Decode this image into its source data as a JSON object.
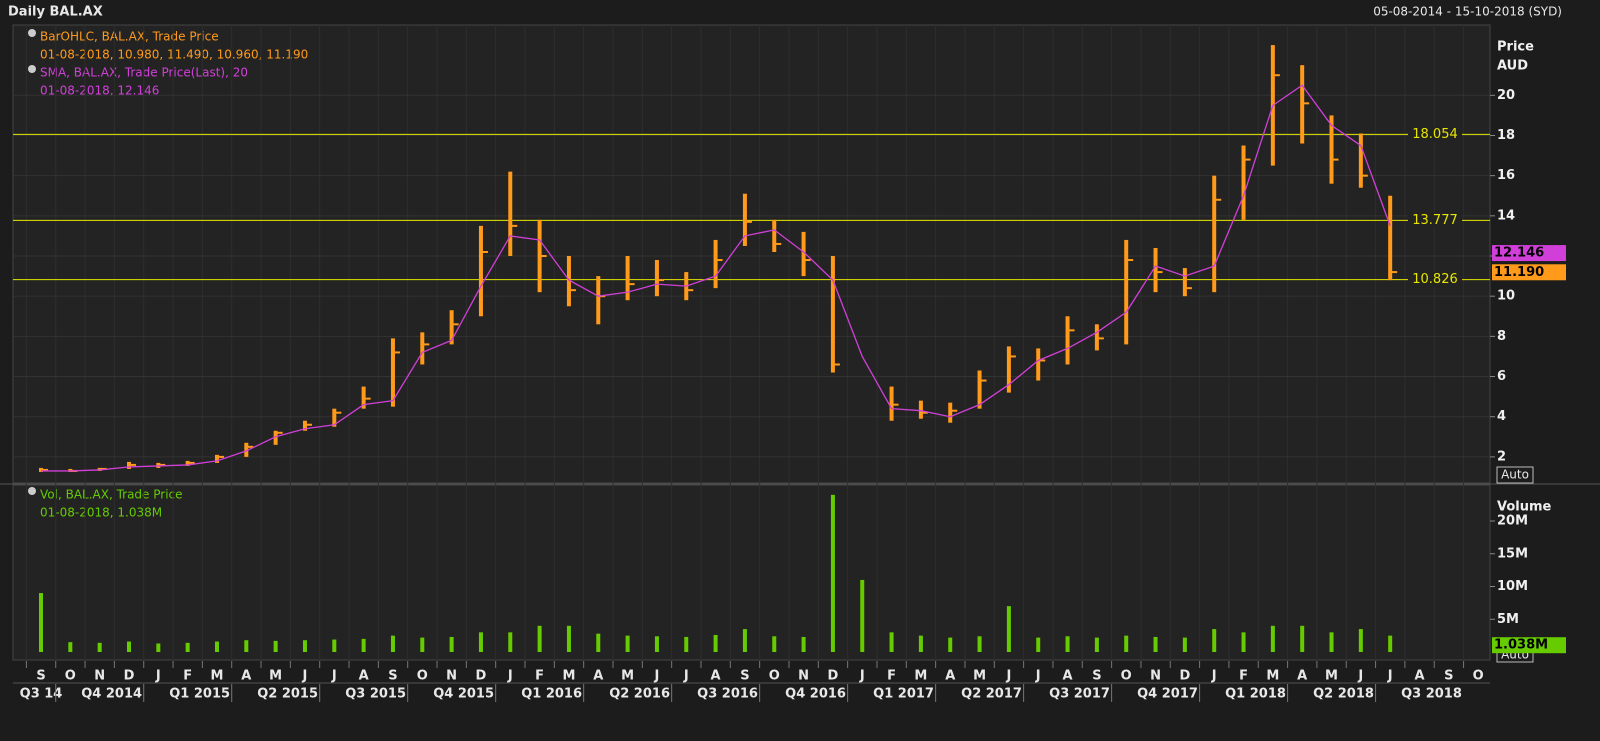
{
  "header": {
    "title": "Daily BAL.AX",
    "range": "05-08-2014 - 15-10-2018 (SYD)"
  },
  "chart_data": [
    {
      "type": "ohlc",
      "ylabel": "Price",
      "yunit": "AUD",
      "ylim": [
        0.7,
        23.5
      ],
      "yticks": [
        2,
        4,
        6,
        8,
        10,
        12,
        14,
        16,
        18,
        20
      ],
      "grid": true,
      "auto": "Auto",
      "levels": [
        18.054,
        13.777,
        10.826
      ],
      "level_color": "#e6e600",
      "series": [
        {
          "name": "BarOHLC, BAL.AX, Trade Price",
          "color": "#ff9a1a",
          "readout": "01-08-2018, 10.980, 11.490, 10.960, 11.190",
          "tag": {
            "value": 11.19,
            "label": "11.190"
          },
          "high": [
            1.45,
            1.4,
            1.45,
            1.75,
            1.7,
            1.8,
            2.1,
            2.7,
            3.3,
            3.8,
            4.4,
            5.5,
            7.9,
            8.2,
            9.3,
            13.5,
            16.2,
            13.8,
            12.0,
            11.0,
            12.0,
            11.8,
            11.2,
            12.8,
            15.1,
            13.8,
            13.2,
            12.0,
            null,
            5.5,
            4.8,
            4.7,
            6.3,
            7.5,
            7.4,
            9.0,
            8.6,
            12.8,
            12.4,
            11.4,
            16.0,
            17.5,
            22.5,
            21.5,
            19.0,
            18.1,
            15.0,
            null,
            null,
            null
          ],
          "low": [
            1.25,
            1.25,
            1.3,
            1.4,
            1.45,
            1.55,
            1.7,
            2.0,
            2.6,
            3.3,
            3.5,
            4.4,
            4.5,
            6.6,
            7.6,
            9.0,
            12.0,
            10.2,
            9.5,
            8.6,
            9.8,
            10.0,
            9.8,
            10.4,
            12.5,
            12.2,
            11.0,
            6.2,
            null,
            3.8,
            3.9,
            3.7,
            4.4,
            5.2,
            5.8,
            6.6,
            7.3,
            7.6,
            10.2,
            10.0,
            10.2,
            13.8,
            16.5,
            17.6,
            15.6,
            15.4,
            10.8,
            null,
            null,
            null
          ],
          "close": [
            1.35,
            1.3,
            1.4,
            1.6,
            1.6,
            1.7,
            2.0,
            2.5,
            3.2,
            3.6,
            4.2,
            4.9,
            7.2,
            7.6,
            8.6,
            12.2,
            13.5,
            12.0,
            10.3,
            10.0,
            10.6,
            10.8,
            10.3,
            11.8,
            13.7,
            12.6,
            11.8,
            6.6,
            null,
            4.6,
            4.2,
            4.3,
            5.8,
            7.0,
            6.8,
            8.3,
            7.9,
            11.8,
            11.2,
            10.4,
            14.8,
            16.8,
            21.0,
            19.6,
            16.8,
            16.0,
            11.2,
            null,
            null,
            null
          ]
        },
        {
          "name": "SMA, BAL.AX, Trade Price(Last),  20",
          "color": "#d040d8",
          "readout": "01-08-2018, 12.146",
          "tag": {
            "value": 12.146,
            "label": "12.146"
          },
          "values": [
            1.3,
            1.3,
            1.35,
            1.5,
            1.55,
            1.6,
            1.8,
            2.3,
            3.0,
            3.4,
            3.6,
            4.6,
            4.8,
            7.2,
            7.8,
            10.5,
            13.0,
            12.8,
            10.8,
            10.0,
            10.2,
            10.6,
            10.5,
            11.0,
            13.0,
            13.3,
            12.2,
            10.8,
            7.0,
            4.4,
            4.3,
            4.0,
            4.6,
            5.6,
            6.8,
            7.4,
            8.2,
            9.2,
            11.5,
            11.0,
            11.5,
            15.0,
            19.5,
            20.5,
            18.5,
            17.5,
            13.5,
            null,
            null,
            null
          ]
        }
      ]
    },
    {
      "type": "bar",
      "ylabel": "Volume",
      "ylim": [
        0,
        25.5
      ],
      "yticks": [
        {
          "value": 5,
          "label": "5M"
        },
        {
          "value": 10,
          "label": "10M"
        },
        {
          "value": 15,
          "label": "15M"
        },
        {
          "value": 20,
          "label": "20M"
        }
      ],
      "auto": "Auto",
      "categories": [
        "S",
        "O",
        "N",
        "D",
        "J",
        "F",
        "M",
        "A",
        "M",
        "J",
        "J",
        "A",
        "S",
        "O",
        "N",
        "D",
        "J",
        "F",
        "M",
        "A",
        "M",
        "J",
        "J",
        "A",
        "S",
        "O",
        "N",
        "D",
        "J",
        "F",
        "M",
        "A",
        "M",
        "J",
        "J",
        "A",
        "S",
        "O",
        "N",
        "D",
        "J",
        "F",
        "M",
        "A",
        "M",
        "J",
        "J",
        "A",
        "S",
        "O"
      ],
      "quarters": [
        "Q3 14",
        "Q4 2014",
        "Q1 2015",
        "Q2 2015",
        "Q3 2015",
        "Q4 2015",
        "Q1 2016",
        "Q2 2016",
        "Q3 2016",
        "Q4 2016",
        "Q1 2017",
        "Q2 2017",
        "Q3 2017",
        "Q4 2017",
        "Q1 2018",
        "Q2 2018",
        "Q3 2018"
      ],
      "series": [
        {
          "name": "Vol, BAL.AX, Trade Price",
          "color": "#66cc00",
          "readout": "01-08-2018, 1.038M",
          "tag": {
            "value": 1.038,
            "label": "1.038M"
          },
          "values": [
            9,
            1.5,
            1.4,
            1.6,
            1.3,
            1.4,
            1.6,
            1.8,
            1.7,
            1.8,
            1.9,
            2.0,
            2.5,
            2.2,
            2.3,
            3.0,
            3.0,
            4.0,
            4.0,
            2.8,
            2.5,
            2.4,
            2.3,
            2.6,
            3.5,
            2.4,
            2.3,
            24,
            11,
            3.0,
            2.5,
            2.2,
            2.4,
            7.0,
            2.2,
            2.4,
            2.2,
            2.5,
            2.3,
            2.2,
            3.5,
            3.0,
            4.0,
            4.0,
            3.0,
            3.5,
            2.5,
            null,
            null,
            null
          ]
        }
      ]
    }
  ]
}
